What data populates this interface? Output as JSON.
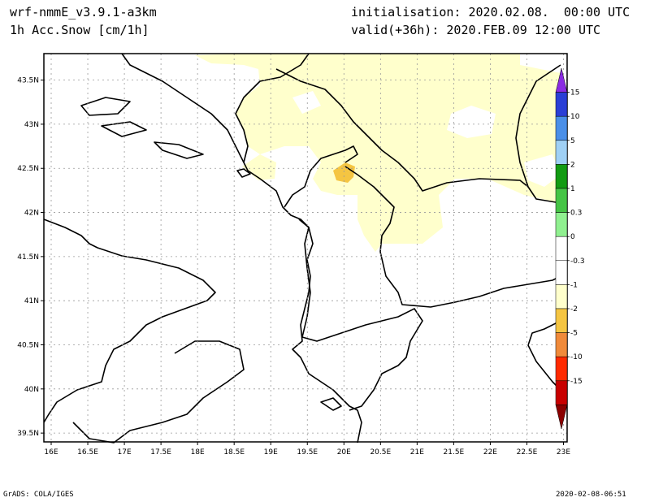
{
  "header": {
    "model": "wrf-nmmE_v3.9.1-a3km",
    "field": "1h Acc.Snow [cm/1h]",
    "init": "initialisation: 2020.02.08.  00:00 UTC",
    "valid": "valid(+36h): 2020.FEB.09 12:00 UTC"
  },
  "footer": {
    "left": "GrADS: COLA/IGES",
    "right": "2020-02-08-06:51"
  },
  "map": {
    "lat_labels": [
      "43.5N",
      "43N",
      "42.5N",
      "42N",
      "41.5N",
      "41N",
      "40.5N",
      "40N",
      "39.5N"
    ],
    "lon_labels": [
      "16E",
      "16.5E",
      "17E",
      "17.5E",
      "18E",
      "18.5E",
      "19E",
      "19.5E",
      "20E",
      "20.5E",
      "21E",
      "21.5E",
      "22E",
      "22.5E",
      "23E"
    ],
    "lat_range": [
      39.4,
      43.8
    ],
    "lon_range": [
      15.9,
      23.05
    ]
  },
  "colorbar": {
    "labels": [
      "15",
      "10",
      "5",
      "2",
      "1",
      "0.3",
      "0",
      "-0.3",
      "-1",
      "-2",
      "-5",
      "-10",
      "-15"
    ],
    "colors": [
      "#8a2be2",
      "#2a3fd6",
      "#4a8fe8",
      "#9fd0f5",
      "#129b12",
      "#45c445",
      "#90f090",
      "#ffffff",
      "#ffffff",
      "#ffffcc",
      "#f5c542",
      "#f08a3a",
      "#ff2a00",
      "#c80000",
      "#8b0000"
    ]
  }
}
